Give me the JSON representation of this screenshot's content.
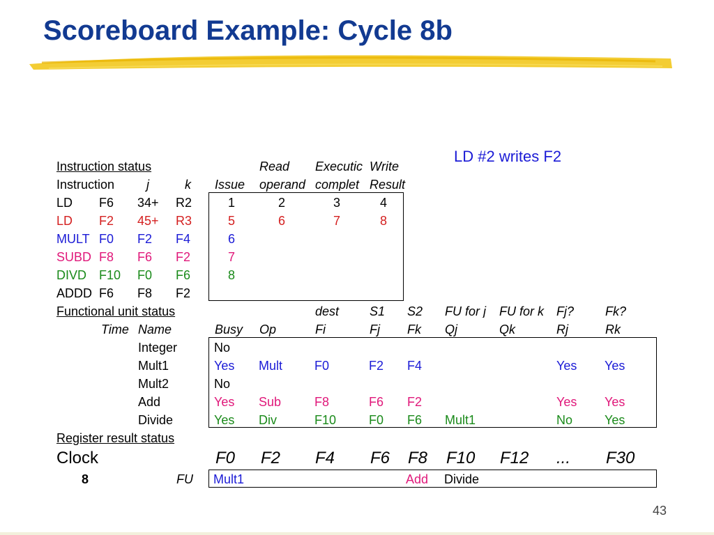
{
  "title": "Scoreboard Example: Cycle 8b",
  "note": "LD #2 writes F2",
  "page_number": "43",
  "colors": {
    "title": "#123a91",
    "black": "#000000",
    "red": "#d42020",
    "blue": "#1b1bd6",
    "magenta": "#e0187a",
    "green": "#1a8a1a",
    "highlighter": "#f2c81e"
  },
  "instruction_status": {
    "label": "Instruction status",
    "header1": {
      "read": "Read",
      "exec": "Executic",
      "write": "Write"
    },
    "header2": {
      "instruction": "Instruction",
      "j": "j",
      "k": "k",
      "issue": "Issue",
      "read": "operand",
      "exec": "complet",
      "write": "Result"
    },
    "rows": [
      {
        "op": "LD",
        "dest": "F6",
        "j": "34+",
        "k": "R2",
        "issue": "1",
        "read": "2",
        "exec": "3",
        "write": "4",
        "color": "#000000"
      },
      {
        "op": "LD",
        "dest": "F2",
        "j": "45+",
        "k": "R3",
        "issue": "5",
        "read": "6",
        "exec": "7",
        "write": "8",
        "color": "#d42020"
      },
      {
        "op": "MULT",
        "dest": "F0",
        "j": "F2",
        "k": "F4",
        "issue": "6",
        "read": "",
        "exec": "",
        "write": "",
        "color": "#1b1bd6"
      },
      {
        "op": "SUBD",
        "dest": "F8",
        "j": "F6",
        "k": "F2",
        "issue": "7",
        "read": "",
        "exec": "",
        "write": "",
        "color": "#e0187a"
      },
      {
        "op": "DIVD",
        "dest": "F10",
        "j": "F0",
        "k": "F6",
        "issue": "8",
        "read": "",
        "exec": "",
        "write": "",
        "color": "#1a8a1a"
      },
      {
        "op": "ADDD",
        "dest": "F6",
        "j": "F8",
        "k": "F2",
        "issue": "",
        "read": "",
        "exec": "",
        "write": "",
        "color": "#000000"
      }
    ]
  },
  "functional_unit_status": {
    "label": "Functional unit status",
    "header1": {
      "dest": "dest",
      "s1": "S1",
      "s2": "S2",
      "qj": "FU for j",
      "qk": "FU for k",
      "rj": "Fj?",
      "rk": "Fk?"
    },
    "header2": {
      "time": "Time",
      "name": "Name",
      "busy": "Busy",
      "op": "Op",
      "fi": "Fi",
      "fj": "Fj",
      "fk": "Fk",
      "qj": "Qj",
      "qk": "Qk",
      "rj": "Rj",
      "rk": "Rk"
    },
    "rows": [
      {
        "name": "Integer",
        "busy": "No",
        "op": "",
        "fi": "",
        "fj": "",
        "fk": "",
        "qj": "",
        "qk": "",
        "rj": "",
        "rk": "",
        "color": "#000000"
      },
      {
        "name": "Mult1",
        "busy": "Yes",
        "op": "Mult",
        "fi": "F0",
        "fj": "F2",
        "fk": "F4",
        "qj": "",
        "qk": "",
        "rj": "Yes",
        "rk": "Yes",
        "color": "#1b1bd6"
      },
      {
        "name": "Mult2",
        "busy": "No",
        "op": "",
        "fi": "",
        "fj": "",
        "fk": "",
        "qj": "",
        "qk": "",
        "rj": "",
        "rk": "",
        "color": "#000000"
      },
      {
        "name": "Add",
        "busy": "Yes",
        "op": "Sub",
        "fi": "F8",
        "fj": "F6",
        "fk": "F2",
        "qj": "",
        "qk": "",
        "rj": "Yes",
        "rk": "Yes",
        "color": "#e0187a"
      },
      {
        "name": "Divide",
        "busy": "Yes",
        "op": "Div",
        "fi": "F10",
        "fj": "F0",
        "fk": "F6",
        "qj": "Mult1",
        "qk": "",
        "rj": "No",
        "rk": "Yes",
        "color": "#1a8a1a"
      }
    ]
  },
  "register_result_status": {
    "label": "Register result status",
    "clock_label": "Clock",
    "clock_value": "8",
    "fu_label": "FU",
    "registers": [
      "F0",
      "F2",
      "F4",
      "F6",
      "F8",
      "F10",
      "F12",
      "...",
      "F30"
    ],
    "fu_values": [
      "Mult1",
      "",
      "",
      "",
      "Add",
      "Divide",
      "",
      "",
      ""
    ],
    "fu_colors": [
      "#1b1bd6",
      "#000000",
      "#000000",
      "#000000",
      "#e0187a",
      "#000000",
      "#000000",
      "#000000",
      "#000000"
    ]
  }
}
